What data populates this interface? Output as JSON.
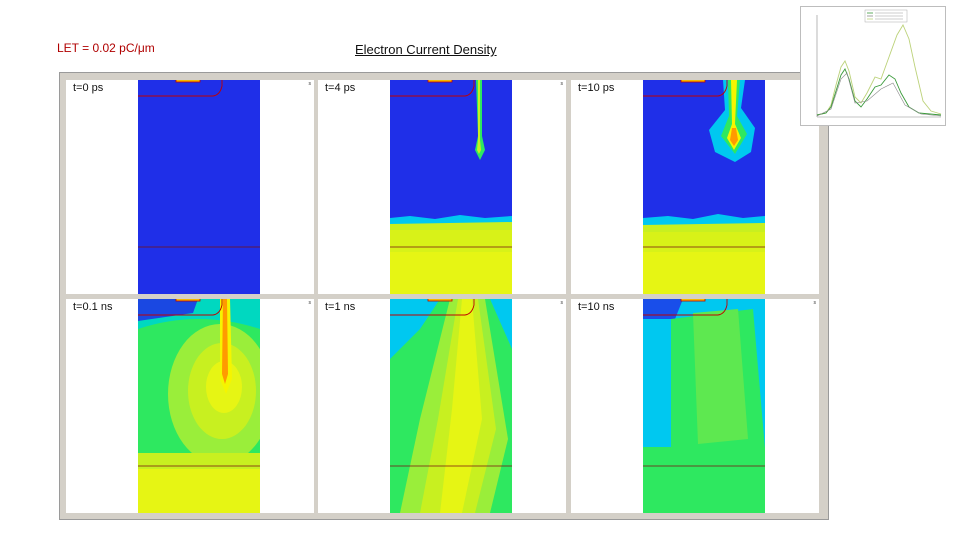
{
  "header": {
    "let_label": "LET = 0.02 pC/μm",
    "title": "Electron Current Density"
  },
  "panels": [
    {
      "label": "t=0 ps",
      "corner_mark": "s"
    },
    {
      "label": "t=4 ps",
      "corner_mark": "s"
    },
    {
      "label": "t=10 ps",
      "corner_mark": "s"
    },
    {
      "label": "t=0.1 ns",
      "corner_mark": "s"
    },
    {
      "label": "t=1 ns",
      "corner_mark": "s"
    },
    {
      "label": "t=10 ns",
      "corner_mark": "s"
    }
  ],
  "colors": {
    "low": "#1f2fe8",
    "mid_low": "#00c8f0",
    "mid": "#2ee860",
    "mid_high": "#c8f020",
    "high": "#f5f500",
    "peak": "#ff9a00",
    "max": "#ff2000",
    "frame": "#d4d0c8",
    "outline": "#c00000"
  },
  "inset": {
    "type": "transient current plot",
    "legend_rows": 3
  }
}
